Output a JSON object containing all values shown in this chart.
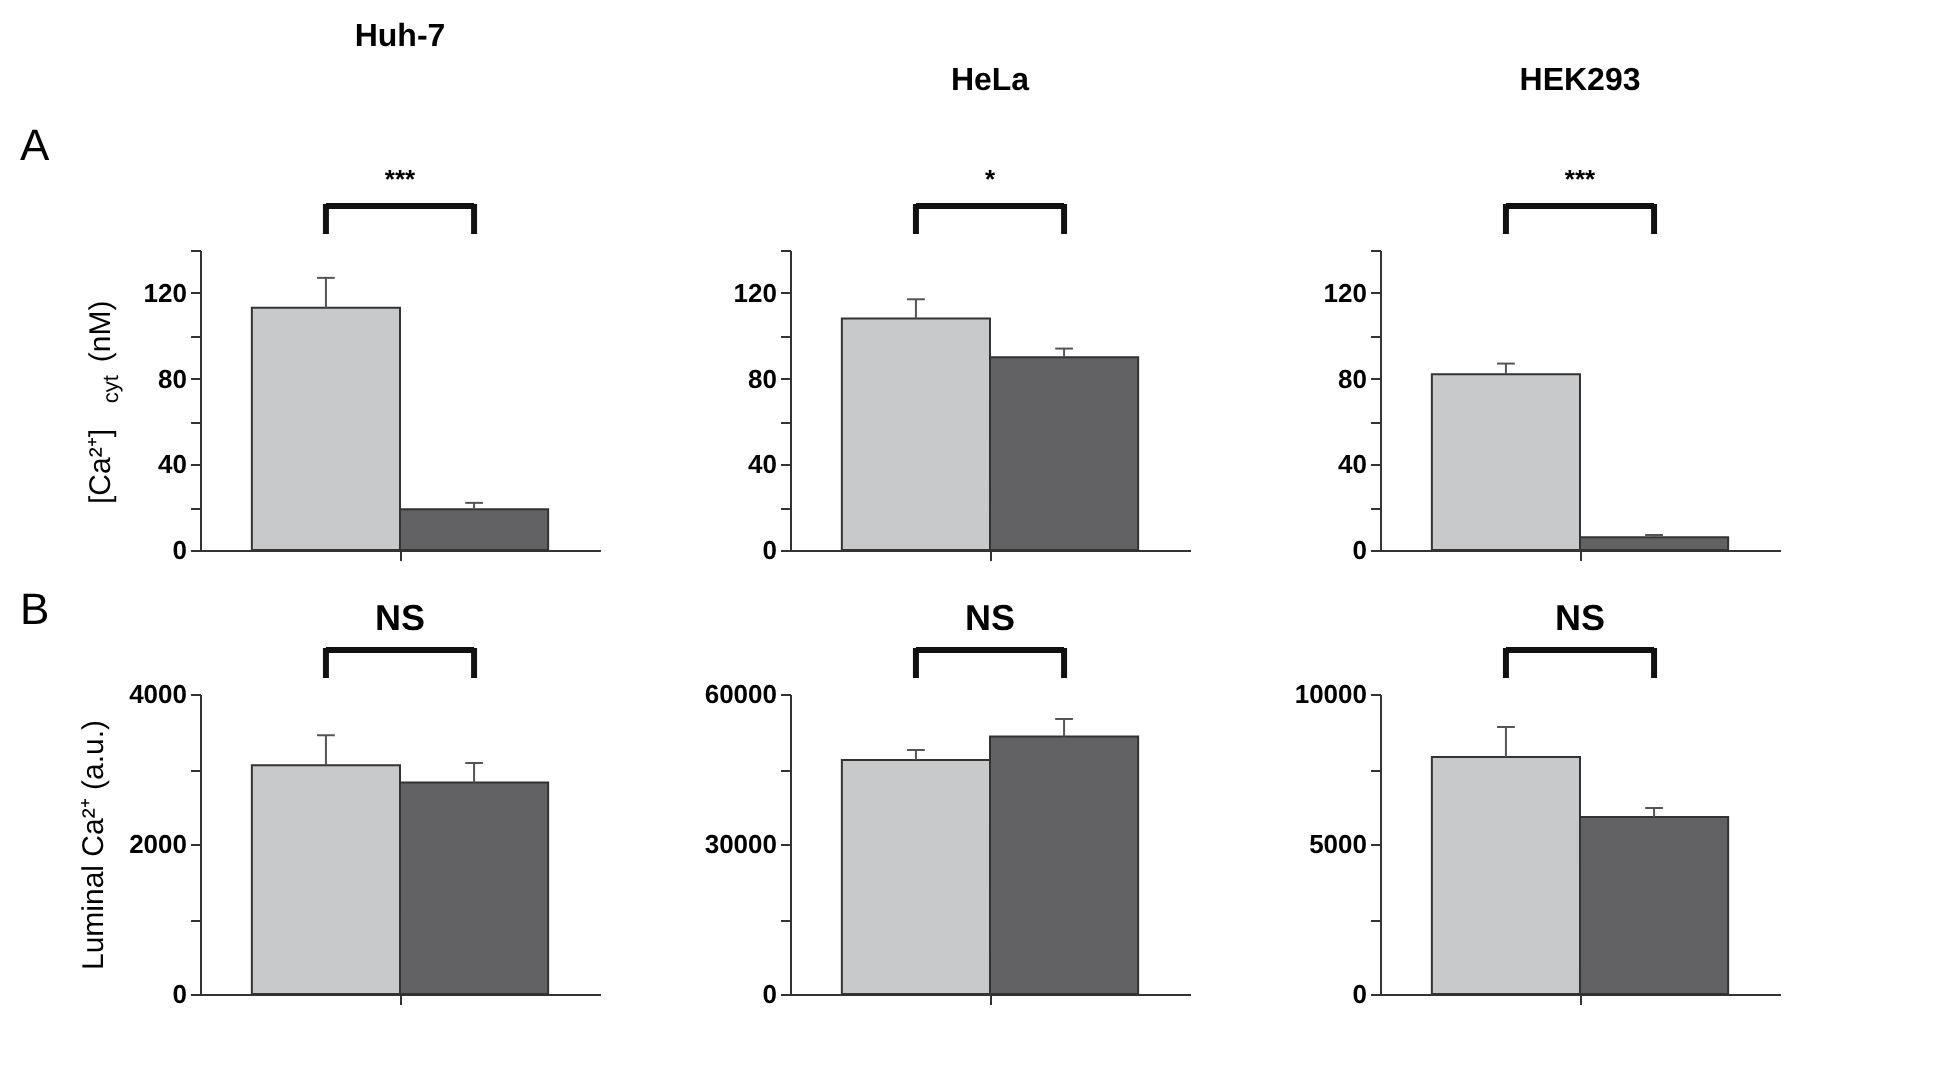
{
  "chart_data": [
    {
      "type": "bar",
      "title": "Huh-7",
      "ylabel": "[Ca²⁺]$_{cyt}$ (nM)",
      "categories": [
        null,
        null
      ],
      "values": [
        113,
        19
      ],
      "colors": [
        "#c8c9cb",
        "#626264"
      ],
      "errors": [
        [
          113,
          127
        ],
        [
          19,
          22
        ]
      ],
      "ylim": [
        0,
        140
      ],
      "yticks": [
        0,
        {
          "value": 20,
          "label": null
        },
        40,
        {
          "value": 60,
          "label": null
        },
        80,
        {
          "value": 100,
          "label": null
        },
        120,
        {
          "value": 140,
          "label": null
        }
      ],
      "annotations": [
        "A",
        "***"
      ]
    },
    {
      "type": "bar",
      "title": "HeLa",
      "categories": [
        null,
        null
      ],
      "values": [
        108,
        90
      ],
      "colors": [
        "#c8c9cb",
        "#626264"
      ],
      "errors": [
        [
          108,
          117
        ],
        [
          90,
          94
        ]
      ],
      "ylim": [
        0,
        140
      ],
      "yticks": [
        0,
        {
          "value": 20,
          "label": null
        },
        40,
        {
          "value": 60,
          "label": null
        },
        80,
        {
          "value": 100,
          "label": null
        },
        120,
        {
          "value": 140,
          "label": null
        }
      ],
      "annotations": [
        "*"
      ]
    },
    {
      "type": "bar",
      "title": "HEK293",
      "categories": [
        null,
        null
      ],
      "values": [
        82,
        6
      ],
      "colors": [
        "#c8c9cb",
        "#626264"
      ],
      "errors": [
        [
          82,
          87
        ],
        [
          6,
          7
        ]
      ],
      "ylim": [
        0,
        140
      ],
      "yticks": [
        0,
        {
          "value": 20,
          "label": null
        },
        40,
        {
          "value": 60,
          "label": null
        },
        80,
        {
          "value": 100,
          "label": null
        },
        120,
        {
          "value": 140,
          "label": null
        }
      ],
      "annotations": [
        "***"
      ]
    },
    {
      "type": "bar",
      "ylabel": "Luminal Ca²⁺ (a.u.)",
      "categories": [
        null,
        null
      ],
      "values": [
        3050,
        2820
      ],
      "colors": [
        "#c8c9cb",
        "#626264"
      ],
      "errors": [
        [
          3050,
          3450
        ],
        [
          2820,
          3080
        ]
      ],
      "ylim": [
        0,
        4000
      ],
      "yticks": [
        0,
        {
          "value": 1000,
          "label": null
        },
        2000,
        {
          "value": 3000,
          "label": null
        },
        4000
      ],
      "annotations": [
        "B",
        "NS"
      ]
    },
    {
      "type": "bar",
      "categories": [
        null,
        null
      ],
      "values": [
        46800,
        51500
      ],
      "colors": [
        "#c8c9cb",
        "#626264"
      ],
      "errors": [
        [
          46800,
          48800
        ],
        [
          51500,
          55000
        ]
      ],
      "ylim": [
        0,
        60000
      ],
      "yticks": [
        0,
        {
          "value": 15000,
          "label": null
        },
        30000,
        {
          "value": 45000,
          "label": null
        },
        60000
      ],
      "annotations": [
        "NS"
      ]
    },
    {
      "type": "bar",
      "categories": [
        null,
        null
      ],
      "values": [
        7900,
        5900
      ],
      "colors": [
        "#c8c9cb",
        "#626264"
      ],
      "errors": [
        [
          7900,
          8900
        ],
        [
          5900,
          6200
        ]
      ],
      "ylim": [
        0,
        10000
      ],
      "yticks": [
        0,
        {
          "value": 2500,
          "label": null
        },
        5000,
        {
          "value": 7500,
          "label": null
        },
        10000
      ],
      "annotations": [
        "NS"
      ]
    }
  ]
}
